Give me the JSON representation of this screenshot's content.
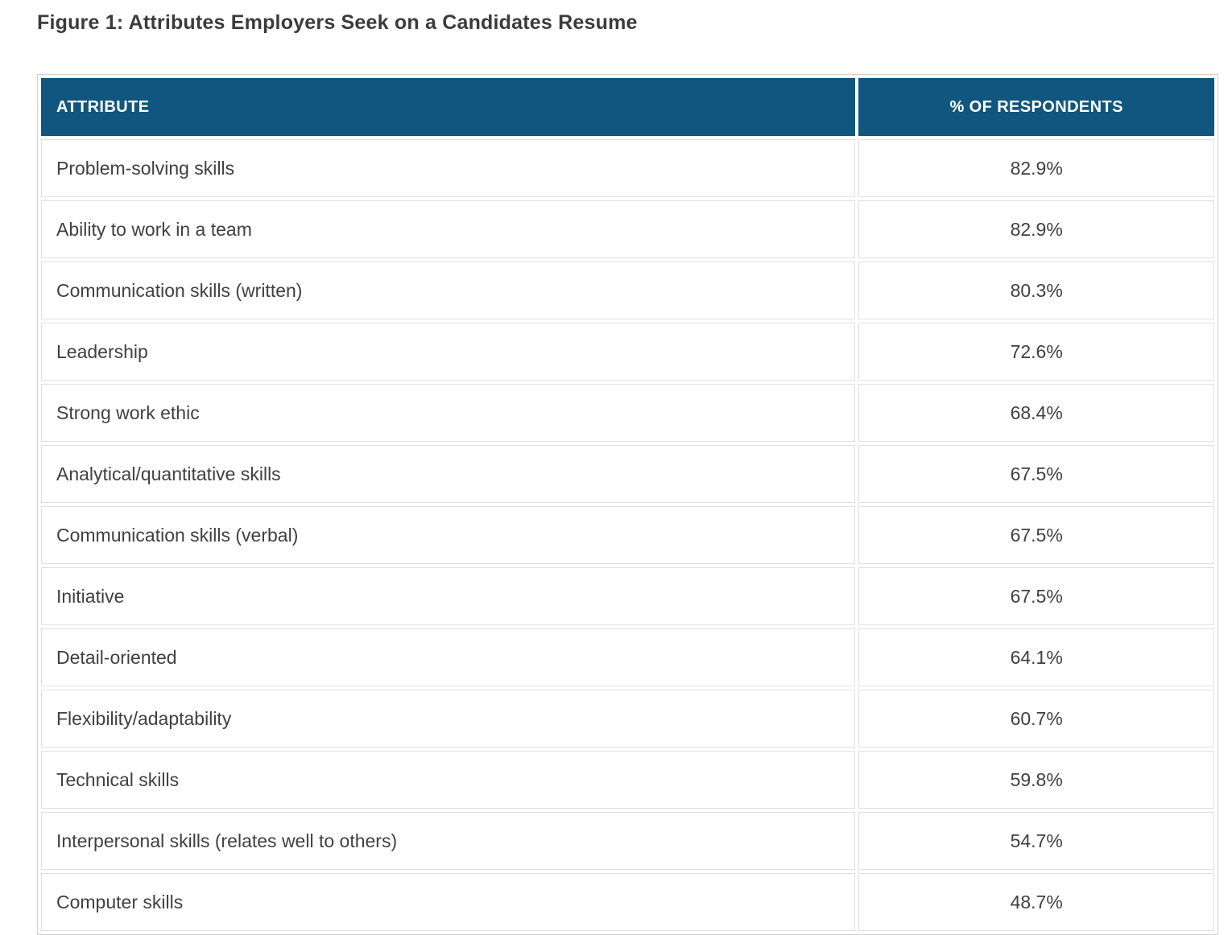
{
  "figure": {
    "title": "Figure 1: Attributes Employers Seek on a Candidates Resume"
  },
  "table": {
    "columns": [
      {
        "label": "ATTRIBUTE"
      },
      {
        "label": "% OF RESPONDENTS"
      }
    ],
    "rows": [
      {
        "attribute": "Problem-solving skills",
        "percent": "82.9%"
      },
      {
        "attribute": "Ability to work in a team",
        "percent": "82.9%"
      },
      {
        "attribute": "Communication skills (written)",
        "percent": "80.3%"
      },
      {
        "attribute": "Leadership",
        "percent": "72.6%"
      },
      {
        "attribute": "Strong work ethic",
        "percent": "68.4%"
      },
      {
        "attribute": "Analytical/quantitative skills",
        "percent": "67.5%"
      },
      {
        "attribute": "Communication skills (verbal)",
        "percent": "67.5%"
      },
      {
        "attribute": "Initiative",
        "percent": "67.5%"
      },
      {
        "attribute": "Detail-oriented",
        "percent": "64.1%"
      },
      {
        "attribute": "Flexibility/adaptability",
        "percent": "60.7%"
      },
      {
        "attribute": "Technical skills",
        "percent": "59.8%"
      },
      {
        "attribute": "Interpersonal skills (relates well to others)",
        "percent": "54.7%"
      },
      {
        "attribute": "Computer skills",
        "percent": "48.7%"
      }
    ]
  },
  "colors": {
    "header_background": "#10567e",
    "header_text": "#ffffff",
    "body_text": "#404040",
    "cell_border": "#e0e0e0",
    "outer_border": "#cfcfcf"
  },
  "chart_data": {
    "type": "table",
    "title": "Figure 1: Attributes Employers Seek on a Candidates Resume",
    "columns": [
      "ATTRIBUTE",
      "% OF RESPONDENTS"
    ],
    "categories": [
      "Problem-solving skills",
      "Ability to work in a team",
      "Communication skills (written)",
      "Leadership",
      "Strong work ethic",
      "Analytical/quantitative skills",
      "Communication skills (verbal)",
      "Initiative",
      "Detail-oriented",
      "Flexibility/adaptability",
      "Technical skills",
      "Interpersonal skills (relates well to others)",
      "Computer skills"
    ],
    "values": [
      82.9,
      82.9,
      80.3,
      72.6,
      68.4,
      67.5,
      67.5,
      67.5,
      64.1,
      60.7,
      59.8,
      54.7,
      48.7
    ]
  }
}
